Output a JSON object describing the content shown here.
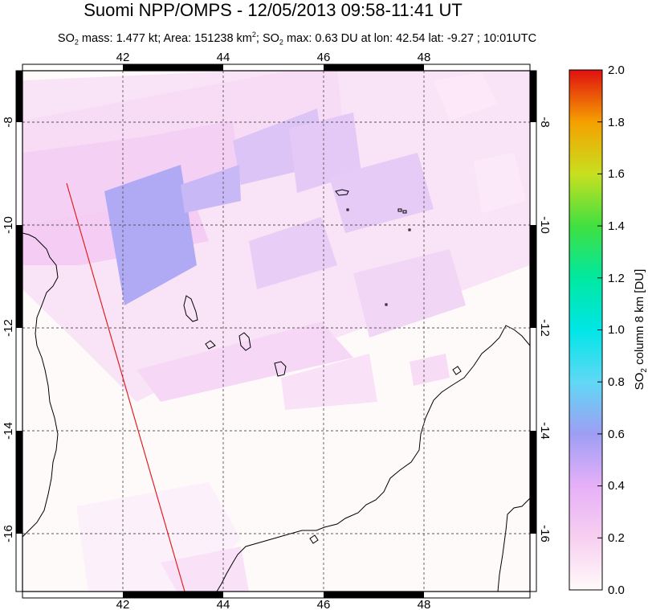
{
  "header": {
    "title": "Suomi NPP/OMPS - 12/05/2013 09:58-11:41 UT",
    "subtitle_parts": [
      "SO",
      "2",
      " mass: 1.477 kt; Area: 151238 km",
      "2",
      "; SO",
      "2",
      " max: 0.63 DU at lon: 42.54 lat: -9.27 ; 10:01UTC"
    ]
  },
  "map": {
    "lon_range": [
      40,
      50
    ],
    "lat_range": [
      -17,
      -9
    ],
    "lon_ticks": [
      "42",
      "44",
      "46",
      "48"
    ],
    "lat_ticks": [
      "-8",
      "-10",
      "-12",
      "-14",
      "-16"
    ],
    "grid": true
  },
  "colorbar": {
    "label_parts": [
      "SO",
      "2",
      " column 8 km [DU]"
    ],
    "min": 0.0,
    "max": 2.0,
    "ticks": [
      "0.0",
      "0.2",
      "0.4",
      "0.6",
      "0.8",
      "1.0",
      "1.2",
      "1.4",
      "1.6",
      "1.8",
      "2.0"
    ],
    "colors": [
      "#fffafa",
      "#f7cff0",
      "#d8a8f8",
      "#9e9ef4",
      "#60d8f5",
      "#00e6e6",
      "#00e8a0",
      "#40e040",
      "#c8e020",
      "#f5a000",
      "#f03010",
      "#e01010"
    ]
  },
  "colors": {
    "frame": "#000000",
    "grid": "#555555",
    "swath_edge": "#e02020",
    "coastline": "#000000"
  }
}
